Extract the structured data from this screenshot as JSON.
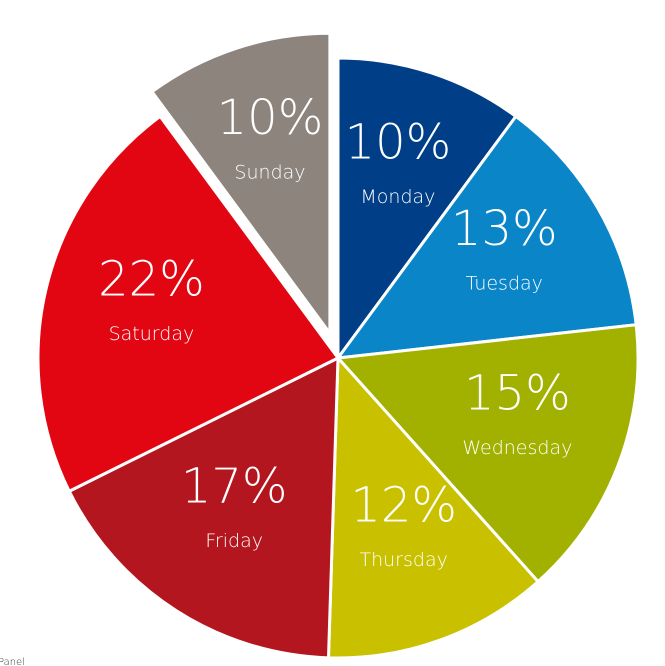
{
  "chart_data": {
    "type": "pie",
    "categories": [
      "Monday",
      "Tuesday",
      "Wednesday",
      "Thursday",
      "Friday",
      "Saturday",
      "Sunday"
    ],
    "values": [
      10,
      13,
      15,
      12,
      17,
      22,
      10
    ],
    "value_labels": [
      "10%",
      "13%",
      "15%",
      "12%",
      "17%",
      "22%",
      "10%"
    ],
    "colors": [
      "#003f87",
      "#0a85c8",
      "#a2b000",
      "#c9c000",
      "#b3161f",
      "#e20613",
      "#8e847e"
    ],
    "exploded": [
      "Sunday"
    ],
    "footnote": "Panel"
  }
}
